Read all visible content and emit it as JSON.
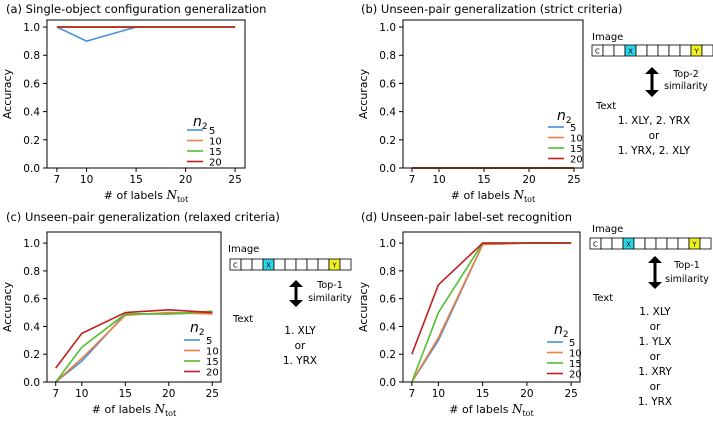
{
  "chart_data": [
    {
      "type": "line",
      "title": "(a) Single-object configuration generalization",
      "xlabel": "# of labels",
      "xlabel_symbol": "N",
      "xlabel_sub": "tot",
      "ylabel": "Accuracy",
      "x": [
        7,
        10,
        15,
        20,
        25
      ],
      "xticks": [
        "7",
        "10",
        "15",
        "20",
        "25"
      ],
      "xlim": [
        6,
        26
      ],
      "ylim": [
        0,
        1.05
      ],
      "yticks": [
        "0.0",
        "0.2",
        "0.4",
        "0.6",
        "0.8",
        "1.0"
      ],
      "legend_title_symbol": "n",
      "legend_title_sub": "2",
      "legend_position": "right",
      "series": [
        {
          "name": "5",
          "color": "#4a90d9",
          "values": [
            1.0,
            0.9,
            1.0,
            1.0,
            1.0
          ]
        },
        {
          "name": "10",
          "color": "#f08040",
          "values": [
            1.0,
            1.0,
            1.0,
            1.0,
            1.0
          ]
        },
        {
          "name": "15",
          "color": "#50c030",
          "values": [
            1.0,
            1.0,
            1.0,
            1.0,
            1.0
          ]
        },
        {
          "name": "20",
          "color": "#c02020",
          "values": [
            1.0,
            1.0,
            1.0,
            1.0,
            1.0
          ]
        }
      ]
    },
    {
      "type": "line",
      "title": "(b) Unseen-pair generalization (strict criteria)",
      "xlabel": "# of labels",
      "xlabel_symbol": "N",
      "xlabel_sub": "tot",
      "ylabel": "Accuracy",
      "x": [
        7,
        10,
        15,
        20,
        25
      ],
      "xticks": [
        "7",
        "10",
        "15",
        "20",
        "25"
      ],
      "xlim": [
        6,
        26
      ],
      "ylim": [
        0,
        1.05
      ],
      "yticks": [
        "0.0",
        "0.2",
        "0.4",
        "0.6",
        "0.8",
        "1.0"
      ],
      "legend_title_symbol": "n",
      "legend_title_sub": "2",
      "legend_position": "lower right",
      "series": [
        {
          "name": "5",
          "color": "#4a90d9",
          "values": [
            0,
            0,
            0,
            0,
            0
          ]
        },
        {
          "name": "10",
          "color": "#f08040",
          "values": [
            0,
            0,
            0,
            0,
            0
          ]
        },
        {
          "name": "15",
          "color": "#50c030",
          "values": [
            0,
            0,
            0,
            0,
            0
          ]
        },
        {
          "name": "20",
          "color": "#c02020",
          "values": [
            0,
            0,
            0,
            0,
            0
          ]
        }
      ]
    },
    {
      "type": "line",
      "title": "(c) Unseen-pair generalization (relaxed criteria)",
      "xlabel": "# of labels",
      "xlabel_symbol": "N",
      "xlabel_sub": "tot",
      "ylabel": "Accuracy",
      "x": [
        7,
        10,
        15,
        20,
        25
      ],
      "xticks": [
        "7",
        "10",
        "15",
        "20",
        "25"
      ],
      "xlim": [
        6,
        26
      ],
      "ylim": [
        0,
        1.08
      ],
      "yticks": [
        "0.0",
        "0.2",
        "0.4",
        "0.6",
        "0.8",
        "1.0"
      ],
      "legend_title_symbol": "n",
      "legend_title_sub": "2",
      "legend_position": "lower right",
      "series": [
        {
          "name": "5",
          "color": "#4a90d9",
          "values": [
            0.0,
            0.15,
            0.49,
            0.49,
            0.5
          ]
        },
        {
          "name": "10",
          "color": "#f08040",
          "values": [
            0.0,
            0.17,
            0.48,
            0.5,
            0.49
          ]
        },
        {
          "name": "15",
          "color": "#50c030",
          "values": [
            0.0,
            0.25,
            0.49,
            0.49,
            0.51
          ]
        },
        {
          "name": "20",
          "color": "#c02020",
          "values": [
            0.1,
            0.35,
            0.5,
            0.52,
            0.5
          ]
        }
      ]
    },
    {
      "type": "line",
      "title": "(d) Unseen-pair label-set recognition",
      "xlabel": "# of labels",
      "xlabel_symbol": "N",
      "xlabel_sub": "tot",
      "ylabel": "Accuracy",
      "x": [
        7,
        10,
        15,
        20,
        25
      ],
      "xticks": [
        "7",
        "10",
        "15",
        "20",
        "25"
      ],
      "xlim": [
        6,
        26
      ],
      "ylim": [
        0,
        1.08
      ],
      "yticks": [
        "0.0",
        "0.2",
        "0.4",
        "0.6",
        "0.8",
        "1.0"
      ],
      "legend_title_symbol": "n",
      "legend_title_sub": "2",
      "legend_position": "lower right",
      "series": [
        {
          "name": "5",
          "color": "#4a90d9",
          "values": [
            0.0,
            0.3,
            0.99,
            1.0,
            1.0
          ]
        },
        {
          "name": "10",
          "color": "#f08040",
          "values": [
            0.0,
            0.32,
            0.99,
            1.0,
            1.0
          ]
        },
        {
          "name": "15",
          "color": "#50c030",
          "values": [
            0.0,
            0.5,
            1.0,
            1.0,
            1.0
          ]
        },
        {
          "name": "20",
          "color": "#c02020",
          "values": [
            0.2,
            0.7,
            1.0,
            1.0,
            1.0
          ]
        }
      ]
    }
  ],
  "annotations": {
    "b": {
      "image_label": "Image",
      "cells": [
        "C",
        "",
        "",
        "X",
        "",
        "",
        "",
        "",
        "",
        "Y",
        ""
      ],
      "arrow_label_1": "Top-2",
      "arrow_label_2": "similarity",
      "text_label": "Text",
      "lines": [
        "1. XLY, 2. YRX",
        "or",
        "1. YRX, 2. XLY"
      ]
    },
    "c": {
      "image_label": "Image",
      "cells": [
        "C",
        "",
        "",
        "X",
        "",
        "",
        "",
        "",
        "",
        "Y",
        ""
      ],
      "arrow_label_1": "Top-1",
      "arrow_label_2": "similarity",
      "text_label": "Text",
      "lines": [
        "1. XLY",
        "or",
        "1. YRX"
      ]
    },
    "d": {
      "image_label": "Image",
      "cells": [
        "C",
        "",
        "",
        "X",
        "",
        "",
        "",
        "",
        "",
        "Y",
        ""
      ],
      "arrow_label_1": "Top-1",
      "arrow_label_2": "similarity",
      "text_label": "Text",
      "lines": [
        "1. XLY",
        "or",
        "1. YLX",
        "or",
        "1. XRY",
        "or",
        "1. YRX"
      ]
    }
  },
  "colors": {
    "cell_x": "#29d6e8",
    "cell_y": "#f0f020"
  }
}
